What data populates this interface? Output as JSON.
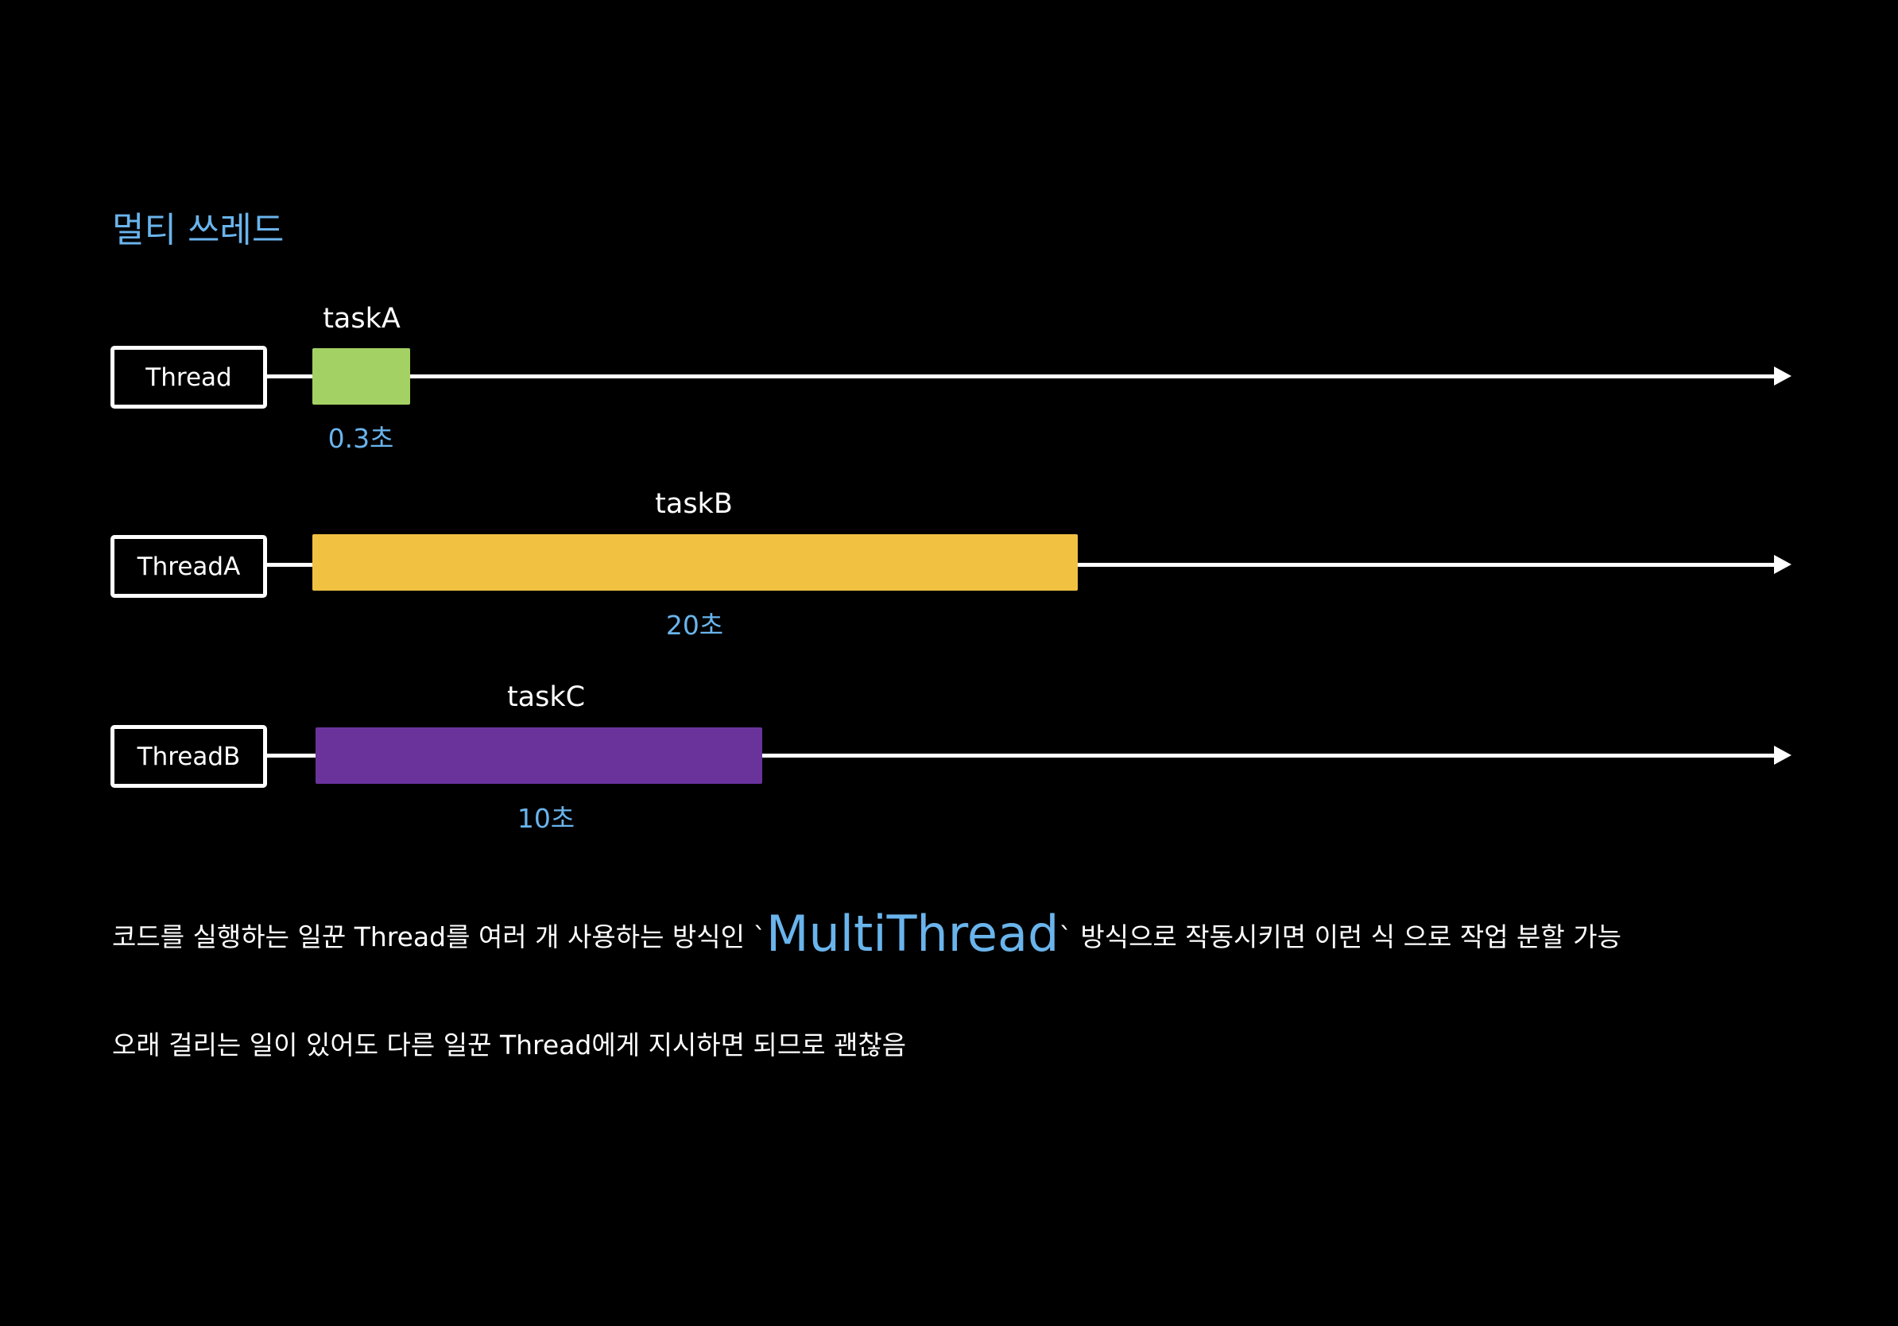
{
  "title": "멀티 쓰레드",
  "colors": {
    "accent": "#6ab4ec",
    "background": "#000000",
    "line": "#ffffff"
  },
  "rows": [
    {
      "thread_label": "Thread",
      "task_label": "taskA",
      "duration_label": "0.3초",
      "task_color": "#a4d164"
    },
    {
      "thread_label": "ThreadA",
      "task_label": "taskB",
      "duration_label": "20초",
      "task_color": "#f1c142"
    },
    {
      "thread_label": "ThreadB",
      "task_label": "taskC",
      "duration_label": "10초",
      "task_color": "#6a339c"
    }
  ],
  "description": {
    "line1_before": "코드를 실행하는 일꾼 Thread를 여러 개 사용하는 방식인 `",
    "line1_highlight": "MultiThread",
    "line1_after": "` 방식으로 작동시키면 이런 식 으로 작업 분할 가능",
    "line2": "오래 걸리는 일이 있어도 다른 일꾼 Thread에게 지시하면 되므로 괜찮음"
  }
}
